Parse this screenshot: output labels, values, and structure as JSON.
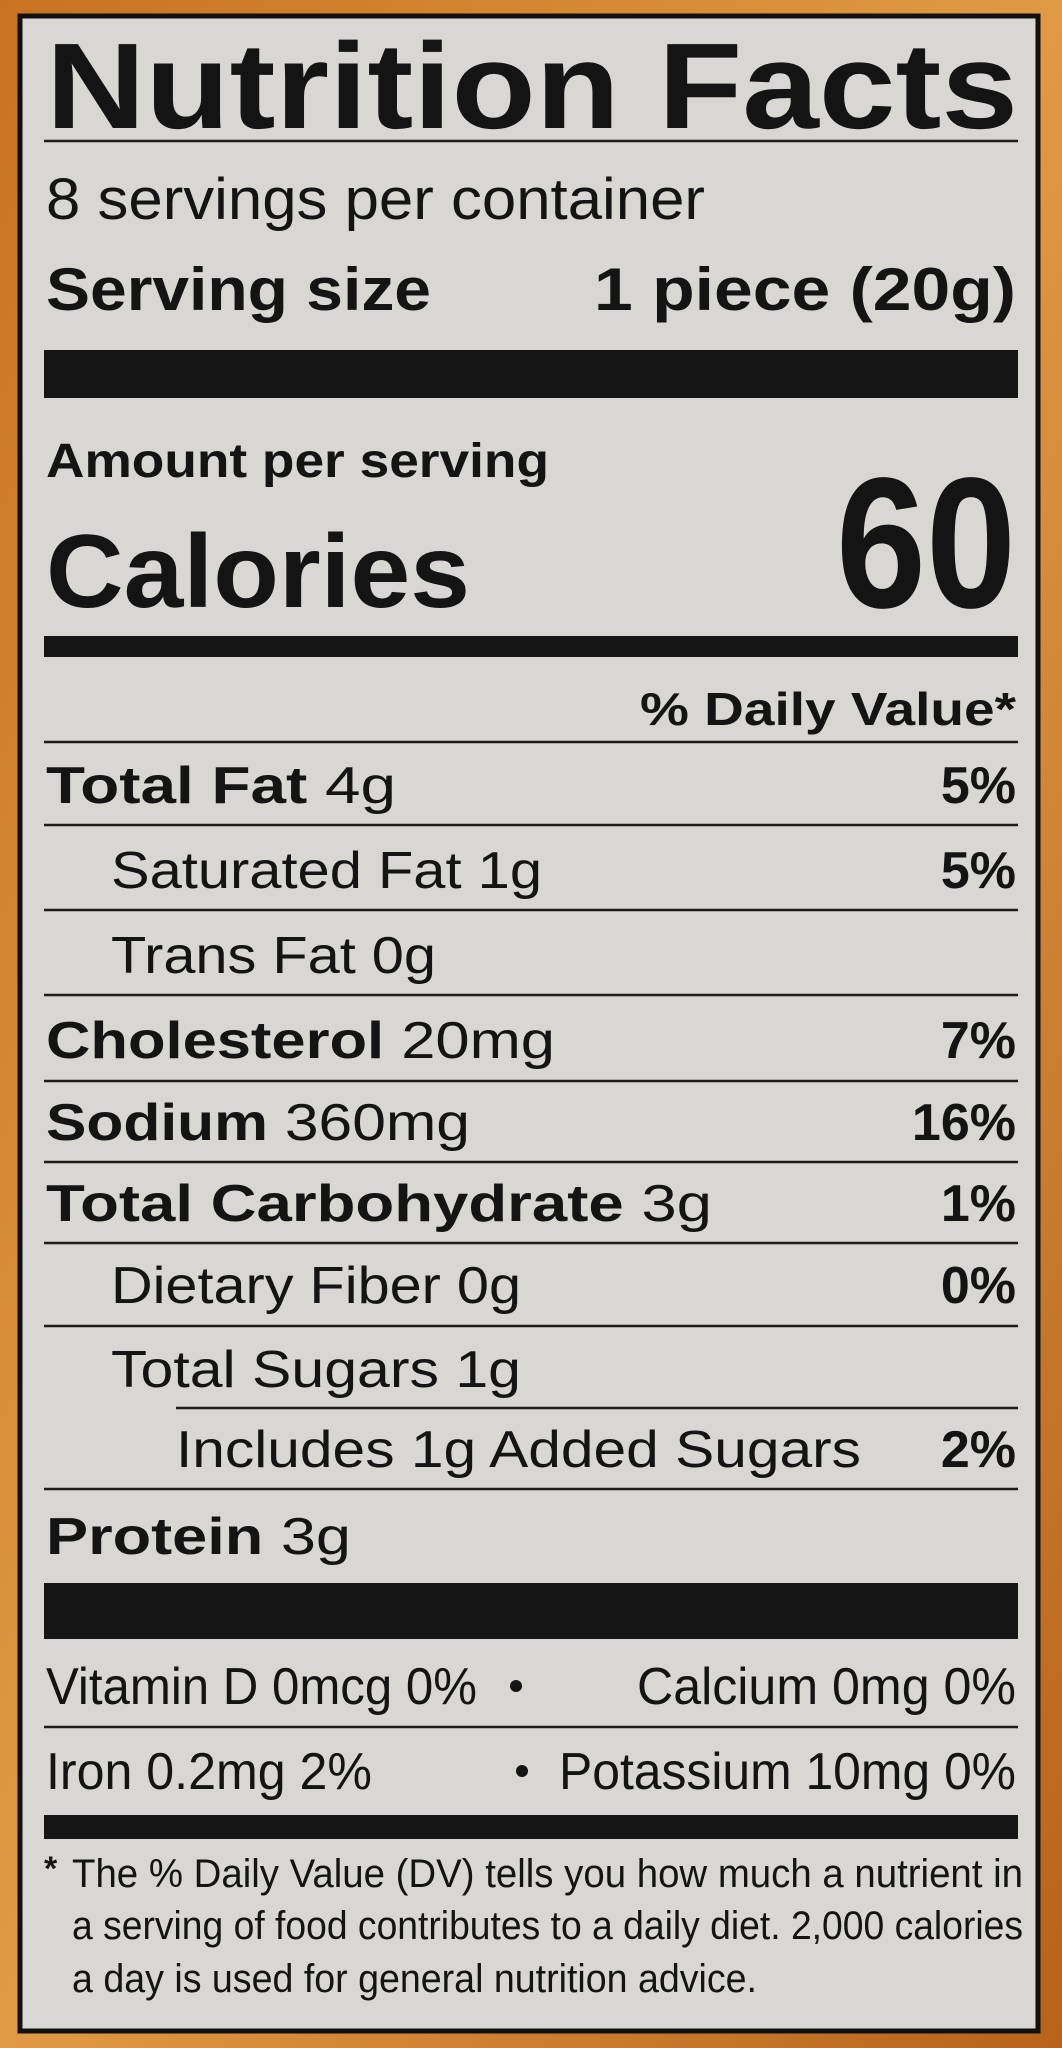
{
  "header": {
    "title": "Nutrition Facts",
    "servings": "8 servings per container",
    "serving_size_label": "Serving size",
    "serving_size_value": "1 piece (20g)"
  },
  "calories": {
    "amount_label": "Amount per serving",
    "label": "Calories",
    "value": 60
  },
  "dv_header": "% Daily Value*",
  "nutrients": [
    {
      "name": "Total Fat",
      "amount": "4g",
      "dv": "5%"
    },
    {
      "name": "Saturated Fat",
      "amount": "1g",
      "dv": "5%"
    },
    {
      "name": "Trans Fat",
      "amount": "0g"
    },
    {
      "name": "Cholesterol",
      "amount": "20mg",
      "dv": "7%"
    },
    {
      "name": "Sodium",
      "amount": "360mg",
      "dv": "16%"
    },
    {
      "name": "Total Carbohydrate",
      "amount": "3g",
      "dv": "1%"
    },
    {
      "name": "Dietary Fiber",
      "amount": "0g",
      "dv": "0%"
    },
    {
      "name": "Total Sugars",
      "amount": "1g"
    },
    {
      "name": "Includes 1g Added Sugars",
      "dv": "2%"
    },
    {
      "name": "Protein",
      "amount": "3g"
    }
  ],
  "vitamins": [
    {
      "name": "Vitamin D",
      "amount": "0mcg",
      "dv": "0%"
    },
    {
      "name": "Calcium",
      "amount": "0mg",
      "dv": "0%"
    },
    {
      "name": "Iron",
      "amount": "0.2mg",
      "dv": "2%"
    },
    {
      "name": "Potassium",
      "amount": "10mg",
      "dv": "0%"
    }
  ],
  "footnote": {
    "mark": "*",
    "lines": [
      "The % Daily Value (DV) tells you how much a nutrient in",
      "a serving of food contributes to a daily diet. 2,000 calories",
      "a day is used for general nutrition advice."
    ]
  }
}
